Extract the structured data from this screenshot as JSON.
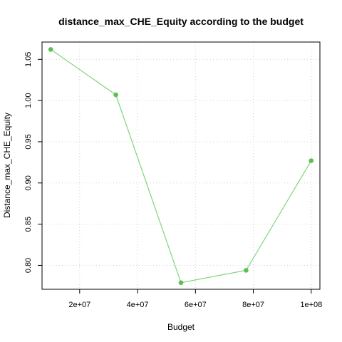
{
  "chart_data": {
    "type": "line",
    "title": "distance_max_CHE_Equity according to the budget",
    "xlabel": "Budget",
    "ylabel": "Distance_max_CHE_Equity",
    "x": [
      10000000,
      32500000,
      55000000,
      77500000,
      100000000
    ],
    "series": [
      {
        "values": [
          1.062,
          1.007,
          0.779,
          0.794,
          0.927
        ],
        "color": "#7fd67a",
        "marker_color": "#5cbf50"
      }
    ],
    "xlim": [
      7000000,
      103000000
    ],
    "ylim": [
      0.771,
      1.071
    ],
    "xticks": [
      20000000,
      40000000,
      60000000,
      80000000,
      100000000
    ],
    "xtick_labels": [
      "2e+07",
      "4e+07",
      "6e+07",
      "8e+07",
      "1e+08"
    ],
    "yticks": [
      0.8,
      0.85,
      0.9,
      0.95,
      1.0,
      1.05
    ],
    "ytick_labels": [
      "0.80",
      "0.85",
      "0.90",
      "0.95",
      "1.00",
      "1.05"
    ],
    "grid": true,
    "legend": "none"
  }
}
